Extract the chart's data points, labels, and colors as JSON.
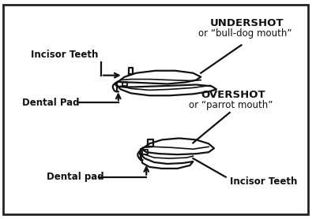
{
  "bg_color": "#ffffff",
  "border_color": "#222222",
  "line_color": "#111111",
  "labels": {
    "incisor_teeth_top": "Incisor Teeth",
    "undershot_line1": "UNDERSHOT",
    "undershot_line2": "or “bull-dog mouth”",
    "dental_pad_top": "Dental Pad",
    "overshot_line1": "OVERSHOT",
    "overshot_line2": "or “parrot mouth”",
    "dental_pad_bot": "Dental pad",
    "incisor_teeth_bot": "Incisor Teeth"
  },
  "figsize": [
    4.0,
    2.78
  ],
  "dpi": 100
}
